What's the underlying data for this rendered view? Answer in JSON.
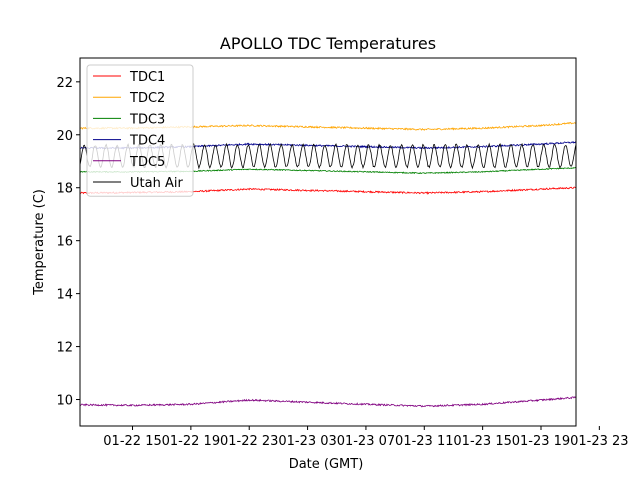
{
  "chart_data": {
    "type": "line",
    "title": "APOLLO TDC Temperatures",
    "xlabel": "Date (GMT)",
    "ylabel": "Temperature (C)",
    "xlim_hours": [
      -1.6,
      32.4
    ],
    "ylim": [
      9.0,
      22.9
    ],
    "x_ticks": [
      {
        "hour": 2,
        "label": "01-22 15"
      },
      {
        "hour": 6,
        "label": "01-22 19"
      },
      {
        "hour": 10,
        "label": "01-22 23"
      },
      {
        "hour": 14,
        "label": "01-23 03"
      },
      {
        "hour": 18,
        "label": "01-23 07"
      },
      {
        "hour": 22,
        "label": "01-23 11"
      },
      {
        "hour": 26,
        "label": "01-23 15"
      },
      {
        "hour": 30,
        "label": "01-23 19"
      },
      {
        "hour": 34,
        "label": "01-23 23"
      }
    ],
    "y_ticks": [
      10,
      12,
      14,
      16,
      18,
      20,
      22
    ],
    "legend_position": "upper-left",
    "x": [
      -1.6,
      2,
      6,
      10,
      14,
      18,
      22,
      26,
      30,
      32.4
    ],
    "series": [
      {
        "name": "TDC1",
        "color": "#ff0000",
        "values": [
          17.8,
          17.82,
          17.85,
          17.95,
          17.9,
          17.85,
          17.8,
          17.85,
          17.95,
          18.0
        ],
        "noise": 0.03
      },
      {
        "name": "TDC2",
        "color": "#ffa500",
        "values": [
          20.25,
          20.25,
          20.3,
          20.35,
          20.3,
          20.25,
          20.2,
          20.25,
          20.35,
          20.45
        ],
        "noise": 0.03
      },
      {
        "name": "TDC3",
        "color": "#008000",
        "values": [
          18.6,
          18.6,
          18.62,
          18.7,
          18.65,
          18.6,
          18.55,
          18.6,
          18.7,
          18.75
        ],
        "noise": 0.02
      },
      {
        "name": "TDC4",
        "color": "#00008b",
        "values": [
          19.5,
          19.5,
          19.55,
          19.65,
          19.6,
          19.55,
          19.5,
          19.55,
          19.65,
          19.72
        ],
        "noise": 0.03
      },
      {
        "name": "TDC5",
        "color": "#800080",
        "values": [
          9.8,
          9.78,
          9.82,
          9.98,
          9.9,
          9.82,
          9.75,
          9.82,
          9.98,
          10.08
        ],
        "noise": 0.03
      },
      {
        "name": "Utah Air",
        "color": "#000000",
        "values": [
          19.2,
          19.2,
          19.2,
          19.2,
          19.2,
          19.2,
          19.2,
          19.2,
          19.2,
          19.2
        ],
        "oscillation": {
          "amplitude": 0.42,
          "period_hours": 0.75
        }
      }
    ]
  }
}
